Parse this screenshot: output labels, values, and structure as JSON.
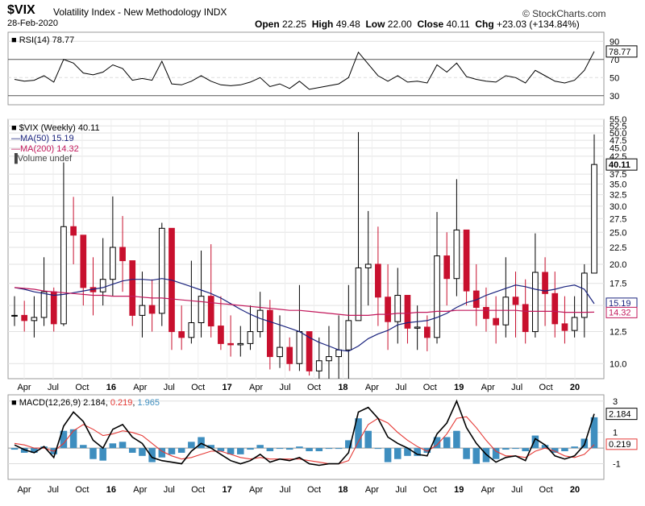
{
  "header": {
    "symbol": "$VIX",
    "title": "Volatility Index - New Methodology INDX",
    "date": "28-Feb-2020",
    "open_label": "Open",
    "open": "22.25",
    "high_label": "High",
    "high": "49.48",
    "low_label": "Low",
    "low": "22.00",
    "close_label": "Close",
    "close": "40.11",
    "chg_label": "Chg",
    "chg": "+23.03 (+134.84%)",
    "copyright": "© StockCharts.com"
  },
  "legend": {
    "rsi": "RSI(14) 78.77",
    "price": "$VIX (Weekly) 40.11",
    "ma50": "MA(50) 15.19",
    "ma200": "MA(200) 14.32",
    "volume": "Volume undef",
    "macd_prefix": "MACD(12,26,9)",
    "macd_val": "2.184",
    "macd_signal": "0.219",
    "macd_hist": "1.965"
  },
  "chart_data": {
    "type": "line",
    "x_axis_labels": [
      "Apr",
      "Jul",
      "Oct",
      "16",
      "Apr",
      "Jul",
      "Oct",
      "17",
      "Apr",
      "Jul",
      "Oct",
      "18",
      "Apr",
      "Jul",
      "Oct",
      "19",
      "Apr",
      "Jul",
      "Oct",
      "20"
    ],
    "dates": [
      "2015-03",
      "2015-04",
      "2015-05",
      "2015-06",
      "2015-07",
      "2015-08",
      "2015-09",
      "2015-10",
      "2015-11",
      "2015-12",
      "2016-01",
      "2016-02",
      "2016-03",
      "2016-04",
      "2016-05",
      "2016-06",
      "2016-07",
      "2016-08",
      "2016-09",
      "2016-10",
      "2016-11",
      "2016-12",
      "2017-01",
      "2017-02",
      "2017-03",
      "2017-04",
      "2017-05",
      "2017-06",
      "2017-07",
      "2017-08",
      "2017-09",
      "2017-10",
      "2017-11",
      "2017-12",
      "2018-01",
      "2018-02",
      "2018-03",
      "2018-04",
      "2018-05",
      "2018-06",
      "2018-07",
      "2018-08",
      "2018-09",
      "2018-10",
      "2018-11",
      "2018-12",
      "2019-01",
      "2019-02",
      "2019-03",
      "2019-04",
      "2019-05",
      "2019-06",
      "2019-07",
      "2019-08",
      "2019-09",
      "2019-10",
      "2019-11",
      "2019-12",
      "2020-01",
      "2020-02"
    ],
    "price": {
      "name": "$VIX (Weekly)",
      "ylim": [
        9,
        55
      ],
      "scale": "log",
      "yticks": [
        10.0,
        12.5,
        15.0,
        17.5,
        20.0,
        22.5,
        25.0,
        27.5,
        30.0,
        32.5,
        35.0,
        37.5,
        42.5,
        45.0,
        47.5,
        50.0,
        52.5,
        55.0
      ],
      "last_label": "40.11",
      "close": [
        14.0,
        13.5,
        13.8,
        16.5,
        13.2,
        26.0,
        24.5,
        17.0,
        16.5,
        18.0,
        22.5,
        20.5,
        14.0,
        15.0,
        14.2,
        25.7,
        12.5,
        12.0,
        13.3,
        16.0,
        13.0,
        11.5,
        11.4,
        11.5,
        12.5,
        14.5,
        10.5,
        11.2,
        10.0,
        12.5,
        9.5,
        10.2,
        10.5,
        11.0,
        13.5,
        19.5,
        20.0,
        15.9,
        13.4,
        16.1,
        12.8,
        12.9,
        12.0,
        21.2,
        18.1,
        25.4,
        16.6,
        14.8,
        13.7,
        13.1,
        15.9,
        15.1,
        12.5,
        18.9,
        16.3,
        13.2,
        12.6,
        13.8,
        18.8,
        40.11
      ],
      "high": [
        16.0,
        15.5,
        16.0,
        21.0,
        17.0,
        40.7,
        32.0,
        22.0,
        21.0,
        24.0,
        32.1,
        28.0,
        18.0,
        19.0,
        18.0,
        26.7,
        15.5,
        15.0,
        20.5,
        22.0,
        23.0,
        16.0,
        14.0,
        13.0,
        15.0,
        16.5,
        15.6,
        14.0,
        12.0,
        17.3,
        12.5,
        12.0,
        13.0,
        14.0,
        17.3,
        50.3,
        29.0,
        26.0,
        20.0,
        19.5,
        16.0,
        15.0,
        14.0,
        28.8,
        25.0,
        36.2,
        24.0,
        20.0,
        17.0,
        16.0,
        21.0,
        19.0,
        18.0,
        24.8,
        21.0,
        19.0,
        16.0,
        16.0,
        20.0,
        49.48
      ],
      "low": [
        13.0,
        12.5,
        12.0,
        13.0,
        12.5,
        13.0,
        20.0,
        15.0,
        14.0,
        15.0,
        16.0,
        16.5,
        13.0,
        12.0,
        12.5,
        13.0,
        11.0,
        11.0,
        11.5,
        12.0,
        12.0,
        11.0,
        10.5,
        10.5,
        11.0,
        12.0,
        9.6,
        9.7,
        9.5,
        9.5,
        9.2,
        9.0,
        9.0,
        9.0,
        9.0,
        14.0,
        15.0,
        13.0,
        11.0,
        11.5,
        11.5,
        11.0,
        10.9,
        11.5,
        15.0,
        16.0,
        15.0,
        13.0,
        12.5,
        11.5,
        12.0,
        12.0,
        11.5,
        12.0,
        13.0,
        12.0,
        11.5,
        12.0,
        12.0,
        22.0
      ],
      "ma50": [
        17.0,
        16.8,
        16.5,
        16.3,
        16.1,
        16.2,
        16.4,
        16.6,
        16.8,
        17.0,
        17.4,
        17.8,
        18.0,
        18.0,
        17.9,
        18.1,
        17.9,
        17.5,
        17.1,
        16.7,
        16.3,
        15.8,
        15.2,
        14.6,
        14.1,
        13.7,
        13.4,
        13.1,
        12.8,
        12.5,
        12.0,
        11.6,
        11.3,
        11.0,
        10.9,
        11.3,
        11.9,
        12.3,
        12.6,
        13.1,
        13.3,
        13.4,
        13.5,
        13.8,
        14.2,
        14.8,
        15.3,
        15.6,
        16.1,
        16.5,
        16.9,
        17.3,
        17.1,
        16.8,
        16.6,
        16.8,
        17.1,
        17.3,
        16.8,
        15.19
      ],
      "ma200": [
        17.0,
        16.9,
        16.8,
        16.6,
        16.5,
        16.4,
        16.3,
        16.2,
        16.1,
        16.1,
        16.0,
        16.0,
        16.0,
        15.9,
        15.8,
        15.8,
        15.7,
        15.6,
        15.5,
        15.4,
        15.3,
        15.2,
        15.1,
        15.0,
        14.9,
        14.8,
        14.7,
        14.6,
        14.5,
        14.5,
        14.4,
        14.3,
        14.2,
        14.1,
        14.0,
        14.0,
        14.0,
        14.1,
        14.1,
        14.2,
        14.2,
        14.3,
        14.3,
        14.4,
        14.4,
        14.5,
        14.5,
        14.5,
        14.5,
        14.5,
        14.5,
        14.5,
        14.4,
        14.4,
        14.4,
        14.4,
        14.3,
        14.3,
        14.3,
        14.32
      ]
    },
    "rsi": {
      "name": "RSI(14)",
      "ylim": [
        20,
        100
      ],
      "yticks": [
        30,
        50,
        70,
        90
      ],
      "last_label": "78.77",
      "values": [
        48,
        46,
        47,
        52,
        45,
        70,
        66,
        55,
        53,
        56,
        64,
        60,
        47,
        49,
        47,
        68,
        43,
        42,
        46,
        52,
        46,
        42,
        41,
        42,
        45,
        50,
        40,
        43,
        38,
        46,
        37,
        39,
        41,
        43,
        50,
        78,
        65,
        52,
        46,
        52,
        45,
        46,
        44,
        64,
        56,
        66,
        51,
        48,
        46,
        45,
        52,
        50,
        44,
        58,
        52,
        46,
        44,
        47,
        58,
        78.77
      ]
    },
    "macd": {
      "name": "MACD(12,26,9)",
      "ylim": [
        -2,
        3.4
      ],
      "yticks": [
        -1,
        1,
        3
      ],
      "last_label_line": "2.184",
      "last_label_signal": "0.219",
      "line": [
        0.2,
        -0.1,
        -0.3,
        0.1,
        -0.6,
        1.4,
        2.3,
        1.7,
        0.5,
        0.0,
        1.2,
        1.5,
        0.7,
        0.3,
        -0.6,
        -0.8,
        -0.9,
        -1.0,
        -0.2,
        0.3,
        0.0,
        -0.4,
        -0.8,
        -1.0,
        -0.8,
        -0.4,
        -0.9,
        -0.7,
        -0.8,
        -0.6,
        -1.0,
        -1.1,
        -1.0,
        -1.0,
        -0.3,
        2.3,
        2.6,
        1.9,
        0.7,
        0.3,
        0.0,
        -0.4,
        -0.5,
        0.9,
        1.6,
        3.0,
        1.3,
        0.3,
        -0.4,
        -0.9,
        -0.6,
        -0.5,
        -0.8,
        0.6,
        0.2,
        -0.5,
        -0.7,
        -0.5,
        0.2,
        2.184
      ],
      "signal": [
        0.3,
        0.2,
        0.0,
        0.0,
        -0.2,
        0.3,
        1.1,
        1.5,
        1.2,
        0.8,
        0.9,
        1.1,
        1.0,
        0.8,
        0.3,
        -0.2,
        -0.5,
        -0.7,
        -0.6,
        -0.4,
        -0.2,
        -0.2,
        -0.4,
        -0.6,
        -0.7,
        -0.6,
        -0.7,
        -0.7,
        -0.7,
        -0.7,
        -0.8,
        -0.9,
        -1.0,
        -1.0,
        -0.8,
        0.4,
        1.5,
        1.9,
        1.6,
        1.0,
        0.5,
        0.1,
        -0.2,
        0.2,
        0.9,
        1.9,
        2.0,
        1.3,
        0.5,
        -0.2,
        -0.5,
        -0.5,
        -0.6,
        -0.2,
        0.0,
        -0.2,
        -0.5,
        -0.6,
        -0.4,
        0.219
      ],
      "histogram": [
        -0.1,
        -0.3,
        -0.3,
        0.1,
        -0.4,
        1.1,
        1.2,
        0.2,
        -0.7,
        -0.8,
        0.3,
        0.4,
        -0.3,
        -0.5,
        -0.9,
        -0.6,
        -0.4,
        -0.3,
        0.4,
        0.7,
        0.2,
        -0.2,
        -0.4,
        -0.4,
        -0.1,
        0.2,
        -0.2,
        0.0,
        -0.1,
        0.1,
        -0.2,
        -0.2,
        0.0,
        0.0,
        0.5,
        1.9,
        1.1,
        0.0,
        -0.9,
        -0.7,
        -0.5,
        -0.5,
        -0.3,
        0.7,
        0.7,
        1.1,
        -0.7,
        -1.0,
        -0.9,
        -0.7,
        -0.1,
        0.0,
        -0.2,
        0.8,
        0.2,
        -0.3,
        -0.2,
        0.1,
        0.6,
        1.965
      ]
    }
  }
}
